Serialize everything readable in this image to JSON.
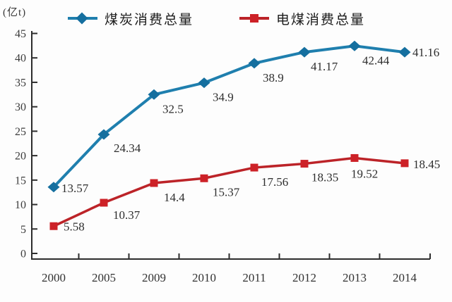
{
  "unit_label": "(亿t)",
  "chart_data": {
    "type": "line",
    "title": "",
    "ylabel_unit": "(亿t)",
    "xlabel": "",
    "categories": [
      "2000",
      "2005",
      "2009",
      "2010",
      "2011",
      "2012",
      "2013",
      "2014"
    ],
    "series": [
      {
        "name": "煤炭消费总量",
        "marker": "diamond",
        "color": "#1f7fae",
        "marker_color": "#156f9f",
        "values": [
          13.57,
          24.34,
          32.5,
          34.9,
          38.9,
          41.17,
          42.44,
          41.16
        ],
        "labels": [
          "13.57",
          "24.34",
          "32.5",
          "34.9",
          "38.9",
          "41.17",
          "42.44",
          "41.16"
        ]
      },
      {
        "name": "电煤消费总量",
        "marker": "square",
        "color": "#bc2328",
        "marker_color": "#cd2127",
        "values": [
          5.58,
          10.37,
          14.4,
          15.37,
          17.56,
          18.35,
          19.52,
          18.45
        ],
        "labels": [
          "5.58",
          "10.37",
          "14.4",
          "15.37",
          "17.56",
          "18.35",
          "19.52",
          "18.45"
        ]
      }
    ],
    "ylim": [
      0,
      45
    ],
    "yticks": [
      0,
      5,
      10,
      15,
      20,
      25,
      30,
      35,
      40,
      45
    ],
    "grid": false,
    "legend_position": "top",
    "axis_color": "#2d2d2d"
  }
}
